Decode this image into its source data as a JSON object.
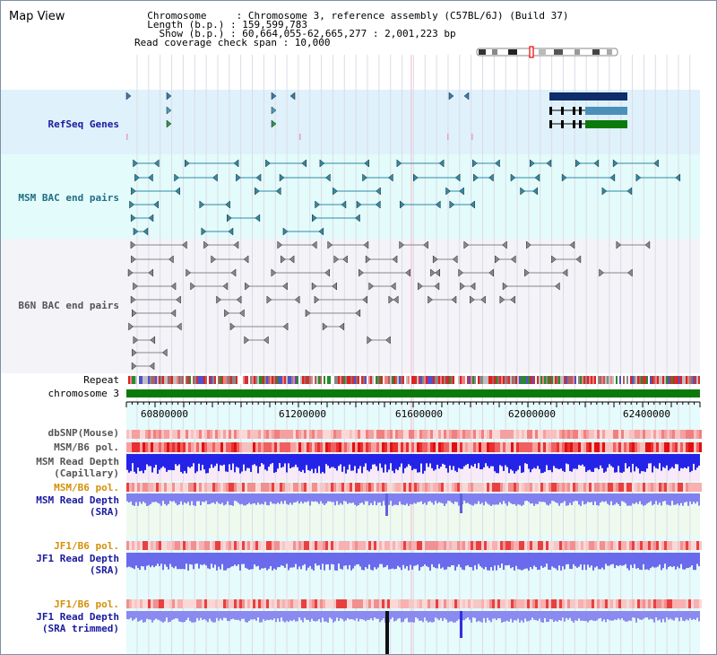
{
  "header": {
    "title": "Map View",
    "chromosome": "  Chromosome     : Chromosome 3, reference assembly (C57BL/6J) (Build 37)",
    "length": "  Length (b.p.) : 159,599,783",
    "show": "    Show (b.p.) : 60,664,055-62,665,277 : 2,001,223 bp",
    "coverage": "Read coverage check span : 10,000"
  },
  "tracks": {
    "refseq": "RefSeq Genes",
    "msm_bac": "MSM BAC end pairs",
    "b6n_bac": "B6N BAC end pairs",
    "repeat": "Repeat",
    "chromosome": "chromosome 3",
    "dbsnp": "dbSNP(Mouse)",
    "msm_b6_pol": "MSM/B6 pol.",
    "msm_depth_cap_1": "MSM Read Depth",
    "msm_depth_cap_2": "(Capillary)",
    "msm_b6_pol_2": "MSM/B6 pol.",
    "msm_depth_sra_1": "MSM Read Depth",
    "msm_depth_sra_2": "(SRA)",
    "jf1_pol_1": "JF1/B6 pol.",
    "jf1_depth_sra_1": "JF1 Read Depth",
    "jf1_depth_sra_2": "(SRA)",
    "jf1_pol_2": "JF1/B6 pol.",
    "jf1_depth_trim_1": "JF1 Read Depth",
    "jf1_depth_trim_2": "(SRA trimmed)"
  },
  "axis": {
    "ticks": [
      "60800000",
      "61200000",
      "61600000",
      "62000000",
      "62400000"
    ]
  },
  "colors": {
    "refseq_bg": "#dff1fb",
    "msm_bg": "#e3fbfb",
    "b6n_bg": "#f3f3f8",
    "track_label_blue": "#1a1aa0",
    "track_label_teal": "#1f6f86",
    "track_label_gray": "#555555",
    "track_label_orange": "#d4900a",
    "chrom_green": "#0a7a0a",
    "gene_navy": "#0d2d6b",
    "gene_steel": "#4a90b8",
    "gene_green": "#0a7a0a",
    "depth_blue": "#2424e8",
    "depth_light_blue": "#7a7ae8"
  }
}
